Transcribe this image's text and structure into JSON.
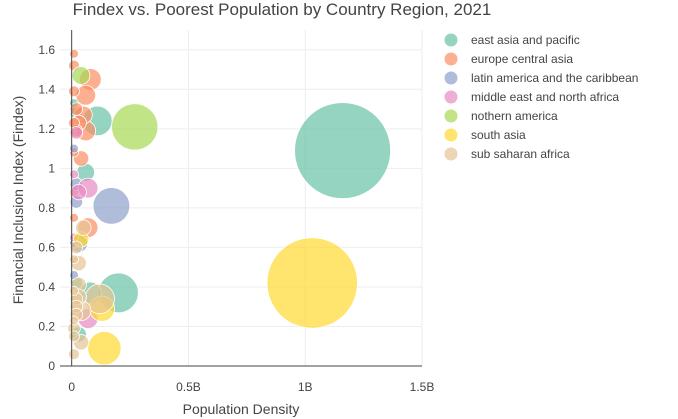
{
  "chart_data": {
    "type": "scatter",
    "title": "Findex vs. Poorest Population by Country Region, 2021",
    "xlabel": "Population Density",
    "ylabel": "Financial Inclusion Index (Findex)",
    "xlim": [
      -0.05,
      1.5
    ],
    "ylim": [
      0,
      1.7
    ],
    "x_ticks": [
      0,
      0.5,
      1,
      1.5
    ],
    "x_tick_labels": [
      "0",
      "0.5B",
      "1B",
      "1.5B"
    ],
    "y_ticks": [
      0,
      0.2,
      0.4,
      0.6,
      0.8,
      1,
      1.2,
      1.4,
      1.6
    ],
    "y_tick_labels": [
      "0",
      "0.2",
      "0.4",
      "0.6",
      "0.8",
      "1",
      "1.2",
      "1.4",
      "1.6"
    ],
    "grid": true,
    "legend": "right",
    "size_encodes": "population",
    "series": [
      {
        "name": "east asia and pacific",
        "color": "#66c2a5",
        "points": [
          {
            "x": 1.16,
            "y": 1.09,
            "size": 1.16
          },
          {
            "x": 0.11,
            "y": 1.24,
            "size": 0.11
          },
          {
            "x": 0.2,
            "y": 0.37,
            "size": 0.2
          },
          {
            "x": 0.08,
            "y": 0.37,
            "size": 0.06
          },
          {
            "x": 0.06,
            "y": 0.98,
            "size": 0.04
          },
          {
            "x": 0.03,
            "y": 0.16,
            "size": 0.03
          },
          {
            "x": 0.02,
            "y": 0.42,
            "size": 0.02
          },
          {
            "x": 0.02,
            "y": 1.28,
            "size": 0.02
          },
          {
            "x": 0.01,
            "y": 1.33,
            "size": 0.01
          }
        ]
      },
      {
        "name": "europe central asia",
        "color": "#fc8d62",
        "points": [
          {
            "x": 0.08,
            "y": 1.45,
            "size": 0.06
          },
          {
            "x": 0.06,
            "y": 1.37,
            "size": 0.05
          },
          {
            "x": 0.05,
            "y": 1.27,
            "size": 0.04
          },
          {
            "x": 0.06,
            "y": 1.19,
            "size": 0.05
          },
          {
            "x": 0.03,
            "y": 1.23,
            "size": 0.03
          },
          {
            "x": 0.07,
            "y": 0.7,
            "size": 0.05
          },
          {
            "x": 0.04,
            "y": 1.05,
            "size": 0.03
          },
          {
            "x": 0.01,
            "y": 1.58,
            "size": 0.01
          },
          {
            "x": 0.01,
            "y": 1.52,
            "size": 0.015
          },
          {
            "x": 0.01,
            "y": 1.39,
            "size": 0.015
          },
          {
            "x": 0.02,
            "y": 1.3,
            "size": 0.02
          },
          {
            "x": 0.01,
            "y": 1.23,
            "size": 0.015
          },
          {
            "x": 0.01,
            "y": 1.08,
            "size": 0.01
          },
          {
            "x": 0.01,
            "y": 0.75,
            "size": 0.01
          },
          {
            "x": 0.01,
            "y": 0.88,
            "size": 0.01
          },
          {
            "x": 0.02,
            "y": 1.19,
            "size": 0.02
          }
        ]
      },
      {
        "name": "latin america and the caribbean",
        "color": "#8da0cb",
        "points": [
          {
            "x": 0.17,
            "y": 0.81,
            "size": 0.17
          },
          {
            "x": 0.03,
            "y": 0.62,
            "size": 0.04
          },
          {
            "x": 0.02,
            "y": 0.92,
            "size": 0.02
          },
          {
            "x": 0.01,
            "y": 0.46,
            "size": 0.01
          },
          {
            "x": 0.01,
            "y": 0.62,
            "size": 0.01
          },
          {
            "x": 0.01,
            "y": 1.1,
            "size": 0.01
          },
          {
            "x": 0.02,
            "y": 0.83,
            "size": 0.02
          }
        ]
      },
      {
        "name": "middle east and north africa",
        "color": "#e78ac3",
        "points": [
          {
            "x": 0.07,
            "y": 0.9,
            "size": 0.05
          },
          {
            "x": 0.07,
            "y": 0.24,
            "size": 0.05
          },
          {
            "x": 0.03,
            "y": 0.88,
            "size": 0.03
          },
          {
            "x": 0.01,
            "y": 0.97,
            "size": 0.01
          },
          {
            "x": 0.02,
            "y": 1.18,
            "size": 0.02
          },
          {
            "x": 0.01,
            "y": 0.65,
            "size": 0.01
          }
        ]
      },
      {
        "name": "nothern america",
        "color": "#a6d854",
        "points": [
          {
            "x": 0.27,
            "y": 1.21,
            "size": 0.27
          },
          {
            "x": 0.04,
            "y": 1.47,
            "size": 0.04
          }
        ]
      },
      {
        "name": "south asia",
        "color": "#ffd92f",
        "points": [
          {
            "x": 1.03,
            "y": 0.42,
            "size": 1.03
          },
          {
            "x": 0.14,
            "y": 0.09,
            "size": 0.14
          },
          {
            "x": 0.13,
            "y": 0.29,
            "size": 0.08
          },
          {
            "x": 0.04,
            "y": 0.64,
            "size": 0.03
          }
        ]
      },
      {
        "name": "sub saharan africa",
        "color": "#e5c494",
        "points": [
          {
            "x": 0.12,
            "y": 0.34,
            "size": 0.11
          },
          {
            "x": 0.04,
            "y": 0.28,
            "size": 0.05
          },
          {
            "x": 0.05,
            "y": 0.7,
            "size": 0.03
          },
          {
            "x": 0.03,
            "y": 0.41,
            "size": 0.03
          },
          {
            "x": 0.03,
            "y": 0.35,
            "size": 0.03
          },
          {
            "x": 0.04,
            "y": 0.12,
            "size": 0.03
          },
          {
            "x": 0.03,
            "y": 0.52,
            "size": 0.03
          },
          {
            "x": 0.02,
            "y": 0.34,
            "size": 0.02
          },
          {
            "x": 0.02,
            "y": 0.3,
            "size": 0.02
          },
          {
            "x": 0.02,
            "y": 0.26,
            "size": 0.02
          },
          {
            "x": 0.01,
            "y": 0.19,
            "size": 0.02
          },
          {
            "x": 0.01,
            "y": 0.06,
            "size": 0.015
          },
          {
            "x": 0.01,
            "y": 0.15,
            "size": 0.015
          },
          {
            "x": 0.01,
            "y": 0.38,
            "size": 0.01
          },
          {
            "x": 0.01,
            "y": 0.54,
            "size": 0.01
          },
          {
            "x": 0.02,
            "y": 0.6,
            "size": 0.02
          },
          {
            "x": 0.01,
            "y": 0.23,
            "size": 0.01
          }
        ]
      }
    ]
  }
}
